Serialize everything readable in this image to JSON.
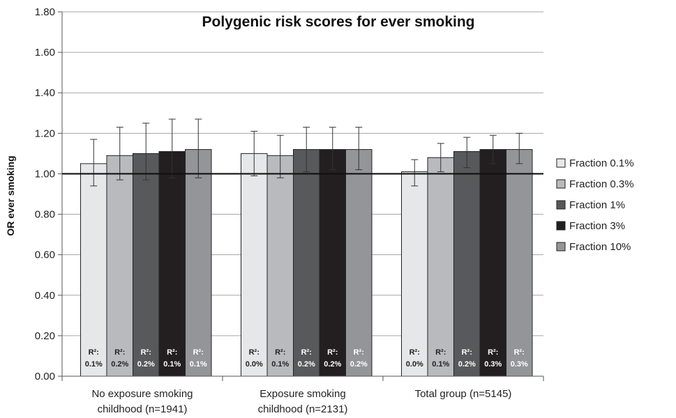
{
  "chart_data": {
    "type": "bar",
    "title": "Polygenic risk scores for ever smoking",
    "ylabel": "OR ever smoking",
    "xlabel": "",
    "ylim": [
      0,
      1.8
    ],
    "ytick_step": 0.2,
    "ytick_labels": [
      "0.00",
      "0.20",
      "0.40",
      "0.60",
      "0.80",
      "1.00",
      "1.20",
      "1.40",
      "1.60",
      "1.80"
    ],
    "reference_line": 1.0,
    "grid": true,
    "legend_position": "right",
    "categories": [
      [
        "No exposure smoking",
        "childhood (n=1941)"
      ],
      [
        "Exposure smoking",
        "childhood (n=2131)"
      ],
      [
        "Total group (n=5145)"
      ]
    ],
    "series": [
      {
        "name": "Fraction 0.1%",
        "color": "#e6e7e9",
        "values": [
          1.05,
          1.1,
          1.01
        ],
        "err_low": [
          0.94,
          0.99,
          0.94
        ],
        "err_high": [
          1.17,
          1.21,
          1.07
        ],
        "r2": [
          "0.1%",
          "0.0%",
          "0.0%"
        ]
      },
      {
        "name": "Fraction 0.3%",
        "color": "#b9babd",
        "values": [
          1.09,
          1.09,
          1.08
        ],
        "err_low": [
          0.97,
          0.98,
          1.01
        ],
        "err_high": [
          1.23,
          1.19,
          1.15
        ],
        "r2": [
          "0.2%",
          "0.1%",
          "0.1%"
        ]
      },
      {
        "name": "Fraction 1%",
        "color": "#58595b",
        "values": [
          1.1,
          1.12,
          1.11
        ],
        "err_low": [
          0.97,
          1.01,
          1.03
        ],
        "err_high": [
          1.25,
          1.23,
          1.18
        ],
        "r2": [
          "0.2%",
          "0.2%",
          "0.2%"
        ]
      },
      {
        "name": "Fraction 3%",
        "color": "#231f20",
        "values": [
          1.11,
          1.12,
          1.12
        ],
        "err_low": [
          0.98,
          1.02,
          1.05
        ],
        "err_high": [
          1.27,
          1.23,
          1.19
        ],
        "r2": [
          "0.1%",
          "0.2%",
          "0.3%"
        ]
      },
      {
        "name": "Fraction 10%",
        "color": "#939598",
        "values": [
          1.12,
          1.12,
          1.12
        ],
        "err_low": [
          0.98,
          1.02,
          1.05
        ],
        "err_high": [
          1.27,
          1.23,
          1.2
        ],
        "r2": [
          "0.1%",
          "0.2%",
          "0.3%"
        ]
      }
    ],
    "r2_label": "R²:"
  }
}
